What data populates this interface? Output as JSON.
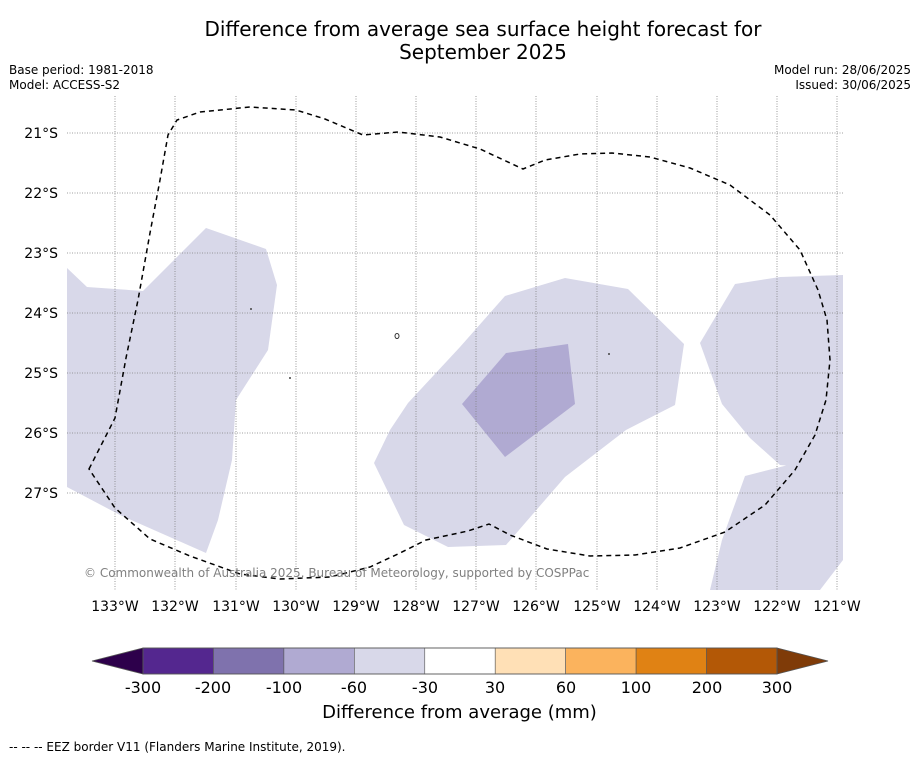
{
  "title": "Difference from average sea surface height forecast for\nSeptember 2025",
  "title_line1": "Difference from average sea surface height forecast for",
  "title_line2": "September 2025",
  "meta_left": {
    "base_period": "Base period: 1981-2018",
    "model": "Model: ACCESS-S2"
  },
  "meta_right": {
    "model_run": "Model run: 28/06/2025",
    "issued": "Issued: 30/06/2025"
  },
  "map": {
    "longitude_labels": [
      "133°W",
      "132°W",
      "131°W",
      "130°W",
      "129°W",
      "128°W",
      "127°W",
      "126°W",
      "125°W",
      "124°W",
      "123°W",
      "122°W",
      "121°W"
    ],
    "latitude_labels": [
      "21°S",
      "22°S",
      "23°S",
      "24°S",
      "25°S",
      "26°S",
      "27°S"
    ],
    "lon_range": [
      -133.8,
      -120.9
    ],
    "lat_range": [
      -28.6,
      -20.2
    ],
    "grid": true,
    "copyright": "© Commonwealth of Australia 2025, Bureau of Meteorology, supported by COSPPac",
    "colors": {
      "anomaly_light": "#d8d8e9",
      "anomaly_medium": "#b0aad2",
      "eez_border": "#000000",
      "grid": "#808080"
    }
  },
  "colorbar": {
    "bins": [
      {
        "color": "#54278f"
      },
      {
        "color": "#7f72ad"
      },
      {
        "color": "#b0aad2"
      },
      {
        "color": "#d8d8e9"
      },
      {
        "color": "#ffffff"
      },
      {
        "color": "#ffe0b6"
      },
      {
        "color": "#fbb35d"
      },
      {
        "color": "#e08214"
      },
      {
        "color": "#b35806"
      }
    ],
    "under_color": "#2d004b",
    "over_color": "#7f3b08",
    "tick_labels": [
      "-300",
      "-200",
      "-100",
      "-60",
      "-30",
      "30",
      "60",
      "100",
      "200",
      "300"
    ],
    "label": "Difference from average (mm)"
  },
  "footer": "--  --  -- EEZ border V11 (Flanders Marine Institute, 2019)."
}
